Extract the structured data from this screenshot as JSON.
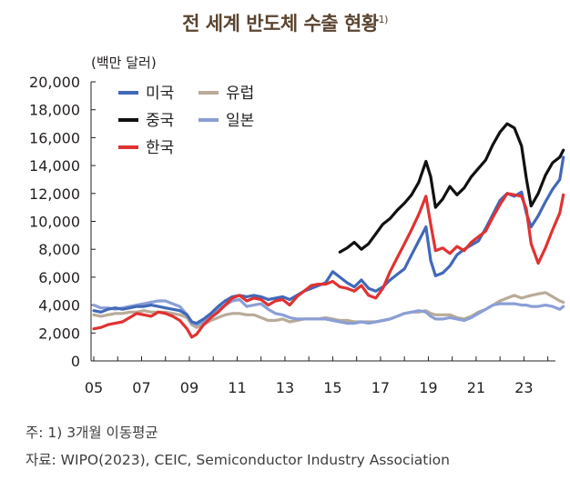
{
  "title": "전 세계 반도체 수출 현황",
  "title_note_mark": "1)",
  "notes": {
    "note1": "주: 1) 3개월 이동평균",
    "source": "자료: WIPO(2023), CEIC, Semiconductor Industry Association"
  },
  "chart_data": {
    "type": "line",
    "title": "전 세계 반도체 수출 현황",
    "ylabel": "(백만 달러)",
    "xlabel": "",
    "xlim": [
      2005.0,
      2024.7
    ],
    "ylim": [
      0,
      20000
    ],
    "yticks": [
      0,
      2000,
      4000,
      6000,
      8000,
      10000,
      12000,
      14000,
      16000,
      18000,
      20000
    ],
    "ytick_labels": [
      "0",
      "2,000",
      "4,000",
      "6,000",
      "8,000",
      "10,000",
      "12,000",
      "14,000",
      "16,000",
      "18,000",
      "20,000"
    ],
    "xticks": [
      2005,
      2007,
      2009,
      2011,
      2013,
      2015,
      2017,
      2019,
      2021,
      2023
    ],
    "xtick_labels": [
      "05",
      "07",
      "09",
      "11",
      "13",
      "15",
      "17",
      "19",
      "21",
      "23"
    ],
    "grid": false,
    "legend_position": "top-left",
    "series": [
      {
        "name": "미국",
        "color": "#4169b8",
        "x": [
          2005.0,
          2005.3,
          2005.6,
          2005.9,
          2006.2,
          2006.5,
          2006.8,
          2007.1,
          2007.4,
          2007.7,
          2008.0,
          2008.3,
          2008.6,
          2008.9,
          2009.1,
          2009.3,
          2009.6,
          2009.9,
          2010.2,
          2010.5,
          2010.8,
          2011.1,
          2011.4,
          2011.7,
          2012.0,
          2012.3,
          2012.6,
          2012.9,
          2013.2,
          2013.5,
          2013.8,
          2014.1,
          2014.4,
          2014.7,
          2015.0,
          2015.3,
          2015.6,
          2015.9,
          2016.2,
          2016.5,
          2016.8,
          2017.1,
          2017.4,
          2017.7,
          2018.0,
          2018.3,
          2018.6,
          2018.9,
          2019.1,
          2019.3,
          2019.6,
          2019.9,
          2020.2,
          2020.5,
          2020.8,
          2021.1,
          2021.4,
          2021.7,
          2022.0,
          2022.3,
          2022.6,
          2022.9,
          2023.1,
          2023.3,
          2023.6,
          2023.9,
          2024.2,
          2024.5,
          2024.65
        ],
        "values": [
          3600,
          3500,
          3700,
          3800,
          3700,
          3800,
          3900,
          3900,
          4000,
          3900,
          3800,
          3700,
          3600,
          3300,
          2800,
          2700,
          3000,
          3400,
          3900,
          4300,
          4600,
          4700,
          4600,
          4700,
          4600,
          4400,
          4500,
          4600,
          4400,
          4700,
          5000,
          5200,
          5400,
          5600,
          6400,
          6000,
          5600,
          5300,
          5800,
          5200,
          5000,
          5300,
          5800,
          6200,
          6600,
          7600,
          8600,
          9600,
          7200,
          6100,
          6300,
          6800,
          7600,
          8000,
          8300,
          8600,
          9500,
          10500,
          11500,
          12000,
          11800,
          12100,
          10600,
          9600,
          10400,
          11400,
          12300,
          13000,
          14600
        ]
      },
      {
        "name": "중국",
        "color": "#111111",
        "x": [
          2015.3,
          2015.6,
          2015.9,
          2016.2,
          2016.5,
          2016.8,
          2017.1,
          2017.4,
          2017.7,
          2018.0,
          2018.3,
          2018.6,
          2018.9,
          2019.1,
          2019.3,
          2019.6,
          2019.9,
          2020.2,
          2020.5,
          2020.8,
          2021.1,
          2021.4,
          2021.7,
          2022.0,
          2022.3,
          2022.6,
          2022.9,
          2023.1,
          2023.3,
          2023.6,
          2023.9,
          2024.2,
          2024.5,
          2024.65
        ],
        "values": [
          7800,
          8100,
          8500,
          8000,
          8400,
          9100,
          9800,
          10200,
          10800,
          11300,
          11900,
          12800,
          14300,
          13200,
          11000,
          11600,
          12500,
          11900,
          12400,
          13200,
          13800,
          14400,
          15500,
          16400,
          17000,
          16700,
          15400,
          13100,
          11100,
          12000,
          13300,
          14200,
          14600,
          15100
        ]
      },
      {
        "name": "한국",
        "color": "#e03232",
        "x": [
          2005.0,
          2005.3,
          2005.6,
          2005.9,
          2006.2,
          2006.5,
          2006.8,
          2007.1,
          2007.4,
          2007.7,
          2008.0,
          2008.3,
          2008.6,
          2008.9,
          2009.1,
          2009.3,
          2009.6,
          2009.9,
          2010.2,
          2010.5,
          2010.8,
          2011.1,
          2011.4,
          2011.7,
          2012.0,
          2012.3,
          2012.6,
          2012.9,
          2013.2,
          2013.5,
          2013.8,
          2014.1,
          2014.4,
          2014.7,
          2015.0,
          2015.3,
          2015.6,
          2015.9,
          2016.2,
          2016.5,
          2016.8,
          2017.1,
          2017.4,
          2017.7,
          2018.0,
          2018.3,
          2018.6,
          2018.9,
          2019.1,
          2019.3,
          2019.6,
          2019.9,
          2020.2,
          2020.5,
          2020.8,
          2021.1,
          2021.4,
          2021.7,
          2022.0,
          2022.3,
          2022.6,
          2022.9,
          2023.1,
          2023.3,
          2023.6,
          2023.9,
          2024.2,
          2024.5,
          2024.65
        ],
        "values": [
          2300,
          2400,
          2600,
          2700,
          2800,
          3100,
          3400,
          3300,
          3200,
          3500,
          3400,
          3200,
          2900,
          2300,
          1700,
          1900,
          2600,
          3100,
          3500,
          4000,
          4500,
          4700,
          4300,
          4500,
          4400,
          4000,
          4300,
          4400,
          4000,
          4600,
          5000,
          5400,
          5500,
          5500,
          5700,
          5300,
          5200,
          5000,
          5400,
          4700,
          4500,
          5200,
          6400,
          7400,
          8400,
          9400,
          10500,
          11800,
          9800,
          7900,
          8100,
          7700,
          8200,
          7900,
          8500,
          8900,
          9300,
          10300,
          11200,
          12000,
          11900,
          11800,
          10900,
          8400,
          7000,
          8100,
          9400,
          10600,
          11900
        ]
      },
      {
        "name": "유럽",
        "color": "#b8ab98",
        "x": [
          2005.0,
          2005.3,
          2005.6,
          2005.9,
          2006.2,
          2006.5,
          2006.8,
          2007.1,
          2007.4,
          2007.7,
          2008.0,
          2008.3,
          2008.6,
          2008.9,
          2009.1,
          2009.3,
          2009.6,
          2009.9,
          2010.2,
          2010.5,
          2010.8,
          2011.1,
          2011.4,
          2011.7,
          2012.0,
          2012.3,
          2012.6,
          2012.9,
          2013.2,
          2013.5,
          2013.8,
          2014.1,
          2014.4,
          2014.7,
          2015.0,
          2015.3,
          2015.6,
          2015.9,
          2016.2,
          2016.5,
          2016.8,
          2017.1,
          2017.4,
          2017.7,
          2018.0,
          2018.3,
          2018.6,
          2018.9,
          2019.1,
          2019.3,
          2019.6,
          2019.9,
          2020.2,
          2020.5,
          2020.8,
          2021.1,
          2021.4,
          2021.7,
          2022.0,
          2022.3,
          2022.6,
          2022.9,
          2023.1,
          2023.3,
          2023.6,
          2023.9,
          2024.2,
          2024.5,
          2024.65
        ],
        "values": [
          3300,
          3200,
          3300,
          3400,
          3400,
          3500,
          3500,
          3600,
          3500,
          3500,
          3500,
          3400,
          3300,
          3100,
          2600,
          2400,
          2600,
          2900,
          3100,
          3300,
          3400,
          3400,
          3300,
          3300,
          3100,
          2900,
          2900,
          3000,
          2800,
          2900,
          3000,
          3000,
          3000,
          3100,
          3000,
          2900,
          2900,
          2800,
          2800,
          2800,
          2800,
          2900,
          3000,
          3200,
          3400,
          3500,
          3500,
          3600,
          3400,
          3300,
          3300,
          3300,
          3100,
          3000,
          3200,
          3500,
          3700,
          4000,
          4300,
          4500,
          4700,
          4500,
          4600,
          4700,
          4800,
          4900,
          4600,
          4300,
          4200
        ]
      },
      {
        "name": "일본",
        "color": "#8b9fd6",
        "x": [
          2005.0,
          2005.3,
          2005.6,
          2005.9,
          2006.2,
          2006.5,
          2006.8,
          2007.1,
          2007.4,
          2007.7,
          2008.0,
          2008.3,
          2008.6,
          2008.9,
          2009.1,
          2009.3,
          2009.6,
          2009.9,
          2010.2,
          2010.5,
          2010.8,
          2011.1,
          2011.4,
          2011.7,
          2012.0,
          2012.3,
          2012.6,
          2012.9,
          2013.2,
          2013.5,
          2013.8,
          2014.1,
          2014.4,
          2014.7,
          2015.0,
          2015.3,
          2015.6,
          2015.9,
          2016.2,
          2016.5,
          2016.8,
          2017.1,
          2017.4,
          2017.7,
          2018.0,
          2018.3,
          2018.6,
          2018.9,
          2019.1,
          2019.3,
          2019.6,
          2019.9,
          2020.2,
          2020.5,
          2020.8,
          2021.1,
          2021.4,
          2021.7,
          2022.0,
          2022.3,
          2022.6,
          2022.9,
          2023.1,
          2023.3,
          2023.6,
          2023.9,
          2024.2,
          2024.5,
          2024.65
        ],
        "values": [
          4000,
          3800,
          3800,
          3700,
          3800,
          3900,
          4000,
          4100,
          4200,
          4300,
          4300,
          4100,
          3900,
          3300,
          2700,
          2600,
          2800,
          3200,
          3700,
          4000,
          4300,
          4400,
          3900,
          4000,
          4100,
          3700,
          3400,
          3300,
          3100,
          3000,
          3000,
          3000,
          3000,
          3000,
          2900,
          2800,
          2700,
          2700,
          2800,
          2700,
          2800,
          2900,
          3000,
          3200,
          3400,
          3500,
          3600,
          3500,
          3200,
          3000,
          3000,
          3100,
          3000,
          2900,
          3100,
          3400,
          3700,
          4000,
          4100,
          4100,
          4100,
          4000,
          4000,
          3900,
          3900,
          4000,
          3900,
          3700,
          3900
        ]
      }
    ]
  }
}
